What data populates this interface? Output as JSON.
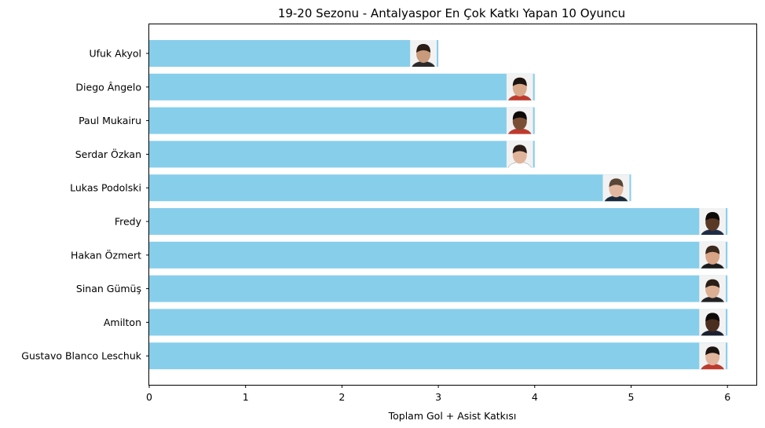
{
  "chart_data": {
    "type": "bar",
    "orientation": "horizontal",
    "title": "19-20 Sezonu - Antalyaspor En Çok Katkı Yapan 10 Oyuncu",
    "xlabel": "Toplam Gol + Asist Katkısı",
    "ylabel": "",
    "xlim": [
      0,
      6.3
    ],
    "xticks": [
      0,
      1,
      2,
      3,
      4,
      5,
      6
    ],
    "categories": [
      "Ufuk Akyol",
      "Diego Ângelo",
      "Paul Mukairu",
      "Serdar Özkan",
      "Lukas Podolski",
      "Fredy",
      "Hakan Özmert",
      "Sinan Gümüş",
      "Amilton",
      "Gustavo Blanco Leschuk"
    ],
    "values": [
      3,
      4,
      4,
      4,
      5,
      6,
      6,
      6,
      6,
      6
    ],
    "bar_color": "#87ceeb",
    "grid": false,
    "legend": "none",
    "player_photos": true
  }
}
